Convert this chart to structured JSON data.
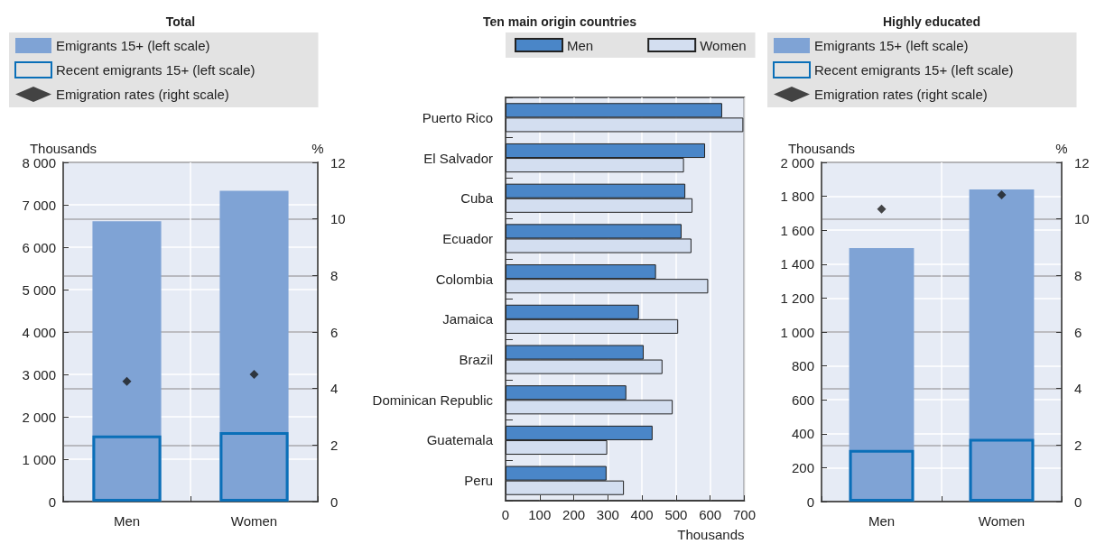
{
  "chart_data": [
    {
      "type": "bar",
      "title": "Total",
      "categories": [
        "Men",
        "Women"
      ],
      "ylabel": "Thousands",
      "y2label": "%",
      "ylim": [
        0,
        8000
      ],
      "yticks": [
        0,
        {
          "value": 1000,
          "label": "1 000"
        },
        {
          "value": 2000,
          "label": "2 000"
        },
        {
          "value": 3000,
          "label": "3 000"
        },
        {
          "value": 4000,
          "label": "4 000"
        },
        {
          "value": 5000,
          "label": "5 000"
        },
        {
          "value": 6000,
          "label": "6 000"
        },
        {
          "value": 7000,
          "label": "7 000"
        },
        {
          "value": 8000,
          "label": "8 000"
        }
      ],
      "y2lim": [
        0,
        12
      ],
      "y2ticks": [
        0,
        2,
        4,
        6,
        8,
        10,
        12
      ],
      "grid": true,
      "legend": "top",
      "marker": "diamond",
      "series": [
        {
          "name": "Emigrants 15+ (left scale)",
          "color": "#7fa3d5",
          "values": [
            6610,
            7330
          ]
        },
        {
          "name": "Recent emigrants 15+ (left scale)",
          "color": "#0a6fb8",
          "values": [
            1560,
            1640
          ]
        },
        {
          "name": "Emigration rates (right scale)",
          "type": "scatter",
          "axis": "y2",
          "color": "#1a1a1a",
          "values": [
            4.25,
            4.5
          ]
        }
      ]
    },
    {
      "type": "bar",
      "title": "Ten main origin countries",
      "orientation": "horizontal",
      "categories": [
        "Puerto Rico",
        "El Salvador",
        "Cuba",
        "Ecuador",
        "Colombia",
        "Jamaica",
        "Brazil",
        "Dominican Republic",
        "Guatemala",
        "Peru"
      ],
      "xlabel": "Thousands",
      "xlim": [
        0,
        700
      ],
      "xticks": [
        0,
        100,
        200,
        300,
        400,
        500,
        600,
        700
      ],
      "grid": "x",
      "legend": "top",
      "series": [
        {
          "name": "Men",
          "color": "#4a86c8",
          "values": [
            635,
            585,
            527,
            516,
            441,
            391,
            405,
            354,
            431,
            296
          ]
        },
        {
          "name": "Women",
          "color": "#d3def0",
          "values": [
            697,
            523,
            548,
            545,
            594,
            506,
            460,
            490,
            298,
            347
          ]
        }
      ]
    },
    {
      "type": "bar",
      "title": "Highly educated",
      "categories": [
        "Men",
        "Women"
      ],
      "ylabel": "Thousands",
      "y2label": "%",
      "ylim": [
        0,
        2000
      ],
      "yticks": [
        0,
        200,
        400,
        600,
        800,
        {
          "value": 1000,
          "label": "1 000"
        },
        {
          "value": 1200,
          "label": "1 200"
        },
        {
          "value": 1400,
          "label": "1 400"
        },
        {
          "value": 1600,
          "label": "1 600"
        },
        {
          "value": 1800,
          "label": "1 800"
        },
        {
          "value": 2000,
          "label": "2 000"
        }
      ],
      "y2lim": [
        0,
        12
      ],
      "y2ticks": [
        0,
        2,
        4,
        6,
        8,
        10,
        12
      ],
      "grid": true,
      "legend": "top",
      "marker": "diamond",
      "series": [
        {
          "name": "Emigrants 15+ (left scale)",
          "color": "#7fa3d5",
          "values": [
            1495,
            1840
          ]
        },
        {
          "name": "Recent emigrants 15+ (left scale)",
          "color": "#0a6fb8",
          "values": [
            305,
            370
          ]
        },
        {
          "name": "Emigration rates (right scale)",
          "type": "scatter",
          "axis": "y2",
          "color": "#1a1a1a",
          "values": [
            10.35,
            10.85
          ]
        }
      ]
    }
  ]
}
